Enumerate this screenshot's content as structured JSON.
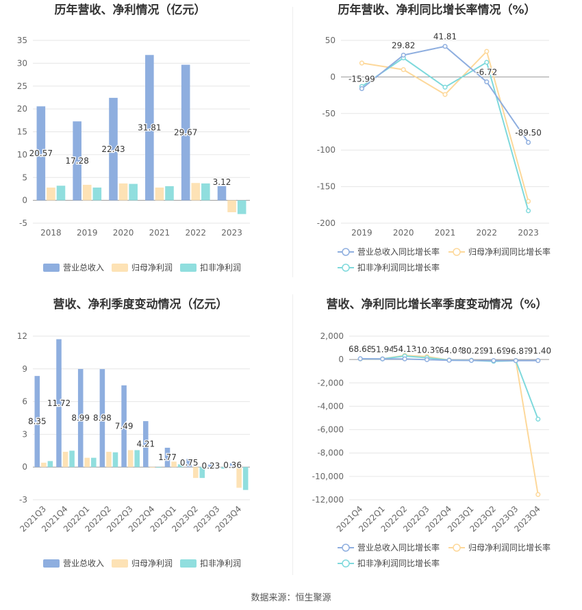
{
  "source": "数据来源：恒生聚源",
  "colors": {
    "revenue": "#8eaedf",
    "net_profit": "#fde2b5",
    "deducted_profit": "#90dede",
    "revenue_line": "#8eaedf",
    "net_profit_line": "#fdd89a",
    "deducted_profit_line": "#7ed9dc",
    "grid": "#e6e6e6",
    "axis_text": "#666666",
    "title_text": "#333333"
  },
  "chart_data": [
    {
      "type": "bar",
      "title": "历年营收、净利情况（亿元）",
      "categories": [
        "2018",
        "2019",
        "2020",
        "2021",
        "2022",
        "2023"
      ],
      "ylim": [
        -5,
        35
      ],
      "yticks": [
        -5,
        0,
        5,
        10,
        15,
        20,
        25,
        30,
        35
      ],
      "series": [
        {
          "name": "营业总收入",
          "values": [
            20.57,
            17.28,
            22.43,
            31.81,
            29.67,
            3.12
          ]
        },
        {
          "name": "归母净利润",
          "values": [
            2.8,
            3.4,
            3.7,
            2.8,
            3.8,
            -2.6
          ]
        },
        {
          "name": "扣非净利润",
          "values": [
            3.2,
            2.8,
            3.6,
            3.1,
            3.7,
            -3.0
          ]
        }
      ],
      "data_labels": [
        "20.57",
        "17.28",
        "22.43",
        "31.81",
        "29.67",
        "3.12"
      ],
      "legend": [
        "营业总收入",
        "归母净利润",
        "扣非净利润"
      ]
    },
    {
      "type": "line",
      "title": "历年营收、净利同比增长率情况（%）",
      "categories": [
        "2019",
        "2020",
        "2021",
        "2022",
        "2023"
      ],
      "ylim": [
        -200,
        50
      ],
      "yticks": [
        -200,
        -150,
        -100,
        -50,
        0,
        50
      ],
      "series": [
        {
          "name": "营业总收入同比增长率",
          "values": [
            -15.99,
            29.82,
            41.81,
            -6.72,
            -89.5
          ]
        },
        {
          "name": "归母净利润同比增长率",
          "values": [
            19,
            10,
            -24,
            35,
            -170
          ]
        },
        {
          "name": "扣非净利润同比增长率",
          "values": [
            -13,
            26,
            -14,
            20,
            -183
          ]
        }
      ],
      "data_labels": [
        "-15.99",
        "29.82",
        "41.81",
        "-6.72",
        "-89.50"
      ],
      "legend": [
        "营业总收入同比增长率",
        "归母净利润同比增长率",
        "扣非净利润同比增长率"
      ]
    },
    {
      "type": "bar",
      "title": "营收、净利季度变动情况（亿元）",
      "categories": [
        "2021Q3",
        "2021Q4",
        "2022Q1",
        "2022Q2",
        "2022Q3",
        "2022Q4",
        "2023Q1",
        "2023Q2",
        "2023Q3",
        "2023Q4"
      ],
      "ylim": [
        -3,
        12
      ],
      "yticks": [
        -3,
        0,
        3,
        6,
        9,
        12
      ],
      "series": [
        {
          "name": "营业总收入",
          "values": [
            8.35,
            11.72,
            8.99,
            8.98,
            7.49,
            4.21,
            1.77,
            0.75,
            0.23,
            0.36
          ]
        },
        {
          "name": "归母净利润",
          "values": [
            0.4,
            1.4,
            0.85,
            1.4,
            1.55,
            -0.05,
            0.5,
            -1.0,
            -0.05,
            -1.9
          ]
        },
        {
          "name": "扣非净利润",
          "values": [
            0.55,
            1.5,
            0.85,
            1.35,
            1.55,
            -0.05,
            0.25,
            -1.0,
            -0.15,
            -2.1
          ]
        }
      ],
      "data_labels": [
        "8.35",
        "11.72",
        "8.99",
        "8.98",
        "7.49",
        "4.21",
        "1.77",
        "0.75",
        "0.23",
        "0.36"
      ],
      "legend": [
        "营业总收入",
        "归母净利润",
        "扣非净利润"
      ]
    },
    {
      "type": "line",
      "title": "营收、净利同比增长率季度变动情况（%）",
      "categories": [
        "2021Q4",
        "2022Q1",
        "2022Q2",
        "2022Q3",
        "2022Q4",
        "2023Q1",
        "2023Q2",
        "2023Q3",
        "2023Q4"
      ],
      "ylim": [
        -12000,
        2000
      ],
      "yticks": [
        -12000,
        -10000,
        -8000,
        -6000,
        -4000,
        -2000,
        0,
        2000
      ],
      "tick_labels": [
        "-12,000",
        "-10,000",
        "-8,000",
        "-6,000",
        "-4,000",
        "-2,000",
        "0",
        "2,000"
      ],
      "series": [
        {
          "name": "营业总收入同比增长率",
          "values": [
            68.68,
            51.94,
            54.13,
            -10.3,
            -64.04,
            -80.28,
            -91.68,
            -96.87,
            -91.4
          ]
        },
        {
          "name": "归母净利润同比增长率",
          "values": [
            50,
            60,
            350,
            250,
            -40,
            -60,
            -100,
            -80,
            -11550
          ]
        },
        {
          "name": "扣非净利润同比增长率",
          "values": [
            60,
            50,
            300,
            150,
            -50,
            -70,
            -150,
            -100,
            -5100
          ]
        }
      ],
      "data_labels": [
        "68.68",
        "51.94",
        "54.13",
        "-10.30",
        "-64.04",
        "-80.28",
        "-91.68",
        "-96.87",
        "-91.40"
      ],
      "legend": [
        "营业总收入同比增长率",
        "归母净利润同比增长率",
        "扣非净利润同比增长率"
      ]
    }
  ]
}
